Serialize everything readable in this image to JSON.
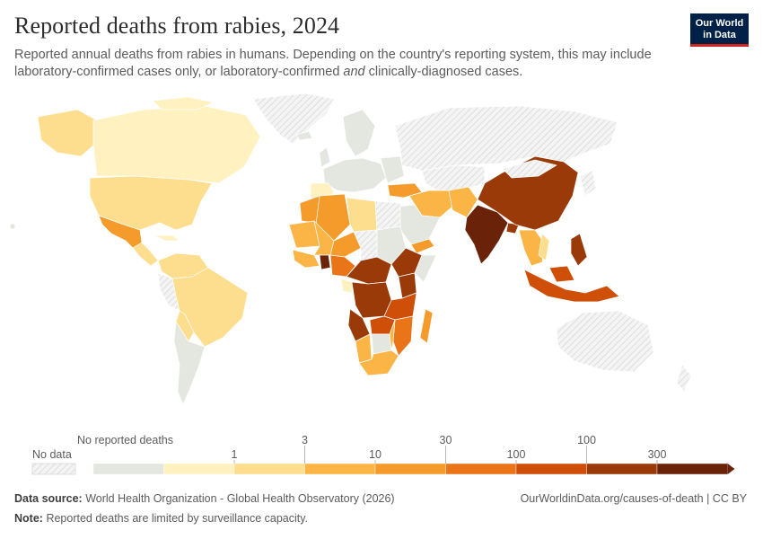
{
  "header": {
    "title": "Reported deaths from rabies, 2024",
    "subtitle_part1": "Reported annual deaths from rabies in humans. Depending on the country's reporting system, this may include laboratory-confirmed cases only, or laboratory-confirmed ",
    "subtitle_em": "and",
    "subtitle_part2": " clinically-diagnosed cases.",
    "logo_line1": "Our World",
    "logo_line2": "in Data"
  },
  "legend": {
    "no_data_label": "No data",
    "no_reported_label": "No reported deaths",
    "ticks": [
      "1",
      "3",
      "10",
      "30",
      "100",
      "100",
      "300"
    ],
    "colors": {
      "no_reported": "#e3e7df",
      "bins": [
        "#fff1c0",
        "#fdde8e",
        "#fbb546",
        "#f59b2b",
        "#ea7518",
        "#cf4e08",
        "#9a3a08",
        "#6a2208"
      ]
    }
  },
  "footer": {
    "source_label": "Data source:",
    "source_text": "World Health Organization - Global Health Observatory (2026)",
    "right_text": "OurWorldinData.org/causes-of-death | CC BY",
    "note_label": "Note:",
    "note_text": "Reported deaths are limited by surveillance capacity."
  }
}
